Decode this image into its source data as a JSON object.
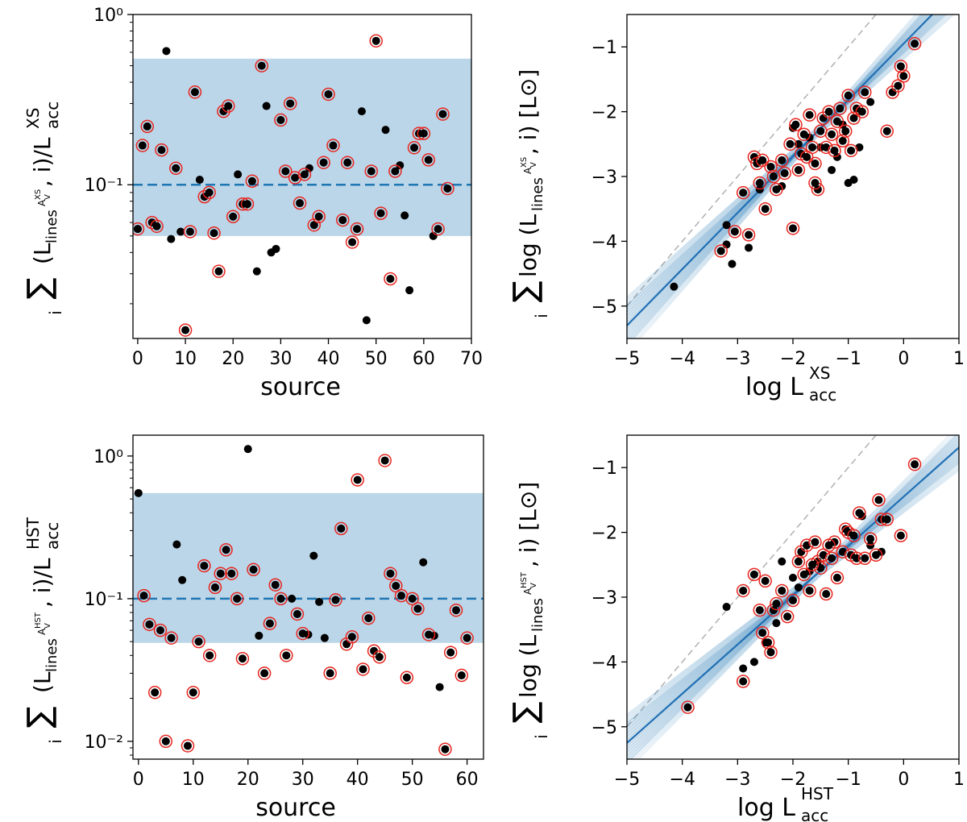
{
  "chart_data": [
    {
      "type": "scatter",
      "panel": "top-left",
      "xlabel": "source",
      "ylabel": "∑ᵢ (L_lines^{A_V^{XS}}, i)/L_acc^{XS}",
      "yscale": "log",
      "xlim": [
        -1,
        70
      ],
      "ylim": [
        0.0125,
        1.0
      ],
      "xticks": [
        "0",
        "10",
        "20",
        "30",
        "40",
        "50",
        "60",
        "70"
      ],
      "yticks": [
        "10⁰",
        "10⁻¹"
      ],
      "median_line": 0.1,
      "band": [
        0.05,
        0.55
      ],
      "points_black": [
        [
          0,
          0.055
        ],
        [
          6,
          0.61
        ],
        [
          7,
          0.048
        ],
        [
          9,
          0.053
        ],
        [
          13,
          0.107
        ],
        [
          21,
          0.115
        ],
        [
          25,
          0.031
        ],
        [
          27,
          0.29
        ],
        [
          28,
          0.04
        ],
        [
          29,
          0.042
        ],
        [
          36,
          0.125
        ],
        [
          47,
          0.27
        ],
        [
          48,
          0.016
        ],
        [
          52,
          0.21
        ],
        [
          55,
          0.13
        ],
        [
          56,
          0.066
        ],
        [
          57,
          0.024
        ],
        [
          62,
          0.05
        ]
      ],
      "points_circled": [
        [
          0,
          0.055
        ],
        [
          1,
          0.17
        ],
        [
          2,
          0.22
        ],
        [
          3,
          0.06
        ],
        [
          4,
          0.057
        ],
        [
          5,
          0.16
        ],
        [
          8,
          0.125
        ],
        [
          10,
          0.014
        ],
        [
          11,
          0.053
        ],
        [
          12,
          0.35
        ],
        [
          14,
          0.085
        ],
        [
          15,
          0.09
        ],
        [
          16,
          0.052
        ],
        [
          17,
          0.031
        ],
        [
          18,
          0.27
        ],
        [
          19,
          0.29
        ],
        [
          20,
          0.065
        ],
        [
          22,
          0.077
        ],
        [
          23,
          0.077
        ],
        [
          24,
          0.105
        ],
        [
          26,
          0.5
        ],
        [
          30,
          0.24
        ],
        [
          31,
          0.12
        ],
        [
          32,
          0.3
        ],
        [
          33,
          0.11
        ],
        [
          34,
          0.078
        ],
        [
          35,
          0.115
        ],
        [
          37,
          0.058
        ],
        [
          38,
          0.065
        ],
        [
          39,
          0.135
        ],
        [
          40,
          0.34
        ],
        [
          41,
          0.17
        ],
        [
          43,
          0.062
        ],
        [
          44,
          0.135
        ],
        [
          45,
          0.046
        ],
        [
          46,
          0.055
        ],
        [
          49,
          0.12
        ],
        [
          50,
          0.7
        ],
        [
          51,
          0.068
        ],
        [
          53,
          0.028
        ],
        [
          54,
          0.12
        ],
        [
          58,
          0.165
        ],
        [
          59,
          0.2
        ],
        [
          60,
          0.2
        ],
        [
          61,
          0.14
        ],
        [
          63,
          0.055
        ],
        [
          64,
          0.26
        ],
        [
          65,
          0.095
        ]
      ]
    },
    {
      "type": "scatter",
      "panel": "top-right",
      "xlabel": "log L_acc^{XS}",
      "ylabel": "∑ᵢ log (L_lines^{A_V^{XS}}, i) [L⊙]",
      "xlim": [
        -5,
        1
      ],
      "ylim": [
        -5.5,
        -0.5
      ],
      "xticks": [
        "−5",
        "−4",
        "−3",
        "−2",
        "−1",
        "0",
        "1"
      ],
      "yticks": [
        "−1",
        "−2",
        "−3",
        "−4",
        "−5"
      ],
      "one_to_one": true,
      "fit": {
        "slope": 0.87,
        "intercept": -0.95
      },
      "points_black": [
        [
          -4.15,
          -4.7
        ],
        [
          -3.2,
          -3.75
        ],
        [
          -3.2,
          -4.05
        ],
        [
          -3.1,
          -4.35
        ],
        [
          -2.8,
          -4.1
        ],
        [
          -2.2,
          -3.15
        ],
        [
          -2.0,
          -2.25
        ],
        [
          -1.7,
          -2.4
        ],
        [
          -1.5,
          -2.55
        ],
        [
          -1.3,
          -2.9
        ],
        [
          -1.2,
          -2.7
        ],
        [
          -1.0,
          -3.1
        ],
        [
          -0.9,
          -3.05
        ],
        [
          -0.8,
          -2.55
        ],
        [
          -0.6,
          -1.85
        ],
        [
          -1.9,
          -2.5
        ],
        [
          -1.1,
          -2.2
        ],
        [
          -2.6,
          -3.2
        ]
      ],
      "points_circled": [
        [
          -3.3,
          -4.15
        ],
        [
          -3.05,
          -3.85
        ],
        [
          -2.9,
          -3.25
        ],
        [
          -2.8,
          -3.9
        ],
        [
          -2.7,
          -2.7
        ],
        [
          -2.65,
          -2.8
        ],
        [
          -2.6,
          -3.1
        ],
        [
          -2.55,
          -2.75
        ],
        [
          -2.5,
          -3.5
        ],
        [
          -2.4,
          -2.85
        ],
        [
          -2.3,
          -3.2
        ],
        [
          -2.2,
          -2.75
        ],
        [
          -2.15,
          -2.95
        ],
        [
          -2.05,
          -2.5
        ],
        [
          -2.0,
          -3.8
        ],
        [
          -1.95,
          -2.2
        ],
        [
          -1.9,
          -2.9
        ],
        [
          -1.85,
          -2.65
        ],
        [
          -1.8,
          -2.35
        ],
        [
          -1.7,
          -2.05
        ],
        [
          -1.65,
          -2.55
        ],
        [
          -1.6,
          -2.8
        ],
        [
          -1.55,
          -3.2
        ],
        [
          -1.5,
          -2.3
        ],
        [
          -1.45,
          -2.1
        ],
        [
          -1.4,
          -2.55
        ],
        [
          -1.35,
          -2.0
        ],
        [
          -1.3,
          -2.35
        ],
        [
          -1.25,
          -2.6
        ],
        [
          -1.2,
          -2.15
        ],
        [
          -1.15,
          -1.95
        ],
        [
          -1.1,
          -2.45
        ],
        [
          -1.05,
          -2.3
        ],
        [
          -1.0,
          -1.75
        ],
        [
          -0.95,
          -2.6
        ],
        [
          -0.9,
          -2.1
        ],
        [
          -0.85,
          -1.95
        ],
        [
          -0.75,
          -2.0
        ],
        [
          -0.7,
          -1.7
        ],
        [
          -0.3,
          -2.3
        ],
        [
          -0.2,
          -1.7
        ],
        [
          -0.1,
          -1.6
        ],
        [
          0.0,
          -1.45
        ],
        [
          0.2,
          -0.95
        ],
        [
          -0.05,
          -1.3
        ],
        [
          -1.6,
          -3.1
        ],
        [
          -2.35,
          -3.0
        ],
        [
          -1.75,
          -2.7
        ]
      ]
    },
    {
      "type": "scatter",
      "panel": "bottom-left",
      "xlabel": "source",
      "ylabel": "∑ᵢ (L_lines^{A_V^{HST}}, i)/L_acc^{HST}",
      "yscale": "log",
      "xlim": [
        -1,
        63
      ],
      "ylim": [
        0.0075,
        1.4
      ],
      "xticks": [
        "0",
        "10",
        "20",
        "30",
        "40",
        "50",
        "60"
      ],
      "yticks": [
        "10⁰",
        "10⁻¹",
        "10⁻²"
      ],
      "median_line": 0.1,
      "band": [
        0.049,
        0.55
      ],
      "points_black": [
        [
          0,
          0.55
        ],
        [
          7,
          0.24
        ],
        [
          8,
          0.135
        ],
        [
          20,
          1.12
        ],
        [
          22,
          0.055
        ],
        [
          28,
          0.1
        ],
        [
          31,
          0.056
        ],
        [
          32,
          0.2
        ],
        [
          33,
          0.095
        ],
        [
          34,
          0.053
        ],
        [
          52,
          0.18
        ],
        [
          54,
          0.055
        ],
        [
          55,
          0.024
        ]
      ],
      "points_circled": [
        [
          1,
          0.105
        ],
        [
          2,
          0.066
        ],
        [
          3,
          0.022
        ],
        [
          4,
          0.06
        ],
        [
          5,
          0.01
        ],
        [
          6,
          0.053
        ],
        [
          9,
          0.0093
        ],
        [
          10,
          0.022
        ],
        [
          11,
          0.05
        ],
        [
          12,
          0.17
        ],
        [
          13,
          0.04
        ],
        [
          14,
          0.12
        ],
        [
          15,
          0.15
        ],
        [
          16,
          0.22
        ],
        [
          17,
          0.15
        ],
        [
          18,
          0.1
        ],
        [
          19,
          0.038
        ],
        [
          21,
          0.16
        ],
        [
          23,
          0.03
        ],
        [
          24,
          0.067
        ],
        [
          25,
          0.125
        ],
        [
          26,
          0.1
        ],
        [
          27,
          0.04
        ],
        [
          29,
          0.078
        ],
        [
          30,
          0.057
        ],
        [
          35,
          0.03
        ],
        [
          36,
          0.098
        ],
        [
          37,
          0.31
        ],
        [
          38,
          0.048
        ],
        [
          39,
          0.054
        ],
        [
          40,
          0.68
        ],
        [
          41,
          0.032
        ],
        [
          42,
          0.073
        ],
        [
          43,
          0.043
        ],
        [
          44,
          0.039
        ],
        [
          45,
          0.93
        ],
        [
          46,
          0.15
        ],
        [
          47,
          0.123
        ],
        [
          48,
          0.105
        ],
        [
          49,
          0.028
        ],
        [
          50,
          0.1
        ],
        [
          51,
          0.085
        ],
        [
          53,
          0.056
        ],
        [
          56,
          0.0088
        ],
        [
          57,
          0.042
        ],
        [
          58,
          0.083
        ],
        [
          59,
          0.029
        ],
        [
          60,
          0.053
        ]
      ]
    },
    {
      "type": "scatter",
      "panel": "bottom-right",
      "xlabel": "log L_acc^{HST}",
      "ylabel": "∑ᵢ log (L_lines^{A_V^{HST}}, i) [L⊙]",
      "xlim": [
        -5,
        1
      ],
      "ylim": [
        -5.5,
        -0.5
      ],
      "xticks": [
        "−5",
        "−4",
        "−3",
        "−2",
        "−1",
        "0",
        "1"
      ],
      "yticks": [
        "−1",
        "−2",
        "−3",
        "−4",
        "−5"
      ],
      "one_to_one": true,
      "fit": {
        "slope": 0.76,
        "intercept": -1.45
      },
      "points_black": [
        [
          -3.2,
          -3.15
        ],
        [
          -2.9,
          -4.1
        ],
        [
          -2.7,
          -4.0
        ],
        [
          -2.5,
          -3.7
        ],
        [
          -2.3,
          -3.4
        ],
        [
          -2.2,
          -2.45
        ],
        [
          -2.0,
          -2.7
        ],
        [
          -1.9,
          -2.85
        ],
        [
          -1.7,
          -2.6
        ],
        [
          -0.75,
          -1.75
        ],
        [
          -0.6,
          -2.2
        ],
        [
          -0.4,
          -2.3
        ]
      ],
      "points_circled": [
        [
          -3.9,
          -4.7
        ],
        [
          -2.9,
          -4.3
        ],
        [
          -2.9,
          -2.9
        ],
        [
          -2.7,
          -2.65
        ],
        [
          -2.6,
          -3.2
        ],
        [
          -2.5,
          -2.75
        ],
        [
          -2.45,
          -3.7
        ],
        [
          -2.4,
          -3.85
        ],
        [
          -2.35,
          -3.2
        ],
        [
          -2.3,
          -3.1
        ],
        [
          -2.2,
          -2.9
        ],
        [
          -2.1,
          -3.3
        ],
        [
          -2.0,
          -3.05
        ],
        [
          -1.9,
          -2.45
        ],
        [
          -1.85,
          -2.3
        ],
        [
          -1.8,
          -2.65
        ],
        [
          -1.75,
          -2.2
        ],
        [
          -1.7,
          -2.9
        ],
        [
          -1.6,
          -2.15
        ],
        [
          -1.55,
          -2.45
        ],
        [
          -1.5,
          -2.55
        ],
        [
          -1.45,
          -2.35
        ],
        [
          -1.4,
          -2.95
        ],
        [
          -1.3,
          -2.4
        ],
        [
          -1.25,
          -2.15
        ],
        [
          -1.2,
          -2.7
        ],
        [
          -1.1,
          -2.3
        ],
        [
          -1.05,
          -1.95
        ],
        [
          -1.0,
          -2.0
        ],
        [
          -0.95,
          -2.35
        ],
        [
          -0.9,
          -2.05
        ],
        [
          -0.85,
          -2.4
        ],
        [
          -0.8,
          -1.7
        ],
        [
          -0.7,
          -2.4
        ],
        [
          -0.6,
          -2.1
        ],
        [
          -0.5,
          -2.35
        ],
        [
          -0.45,
          -1.5
        ],
        [
          -0.4,
          -1.8
        ],
        [
          -0.3,
          -1.8
        ],
        [
          -0.05,
          -2.05
        ],
        [
          0.2,
          -0.95
        ],
        [
          -1.65,
          -2.5
        ],
        [
          -1.35,
          -2.2
        ],
        [
          -2.55,
          -3.55
        ]
      ]
    }
  ]
}
